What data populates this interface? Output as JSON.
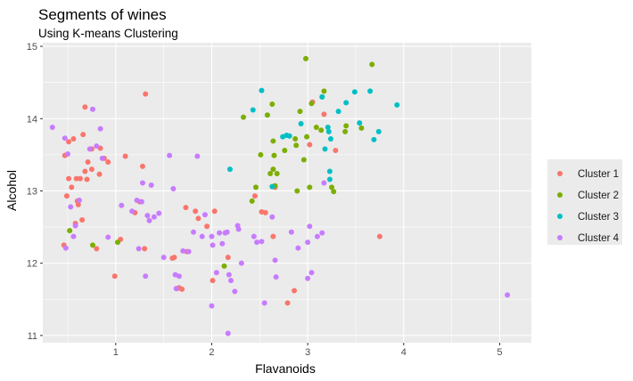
{
  "chart_data": {
    "type": "scatter",
    "title": "Segments of wines",
    "subtitle": "Using K-means Clustering",
    "xlabel": "Flavanoids",
    "ylabel": "Alcohol",
    "xlim": [
      0.24,
      5.33
    ],
    "ylim": [
      10.9,
      15.05
    ],
    "x_ticks": [
      1,
      2,
      3,
      4,
      5
    ],
    "y_ticks": [
      11,
      12,
      13,
      14,
      15
    ],
    "grid": true,
    "legend_position": "right",
    "series": [
      {
        "name": "Cluster 1",
        "color": "#F8766D",
        "points": [
          [
            0.46,
            12.25
          ],
          [
            0.47,
            13.49
          ],
          [
            0.51,
            13.17
          ],
          [
            0.49,
            12.93
          ],
          [
            0.51,
            13.68
          ],
          [
            0.54,
            13.05
          ],
          [
            0.56,
            13.72
          ],
          [
            0.58,
            12.55
          ],
          [
            0.59,
            13.17
          ],
          [
            0.6,
            12.86
          ],
          [
            0.61,
            12.81
          ],
          [
            0.63,
            13.17
          ],
          [
            0.65,
            12.6
          ],
          [
            0.66,
            13.78
          ],
          [
            0.68,
            13.27
          ],
          [
            0.68,
            14.16
          ],
          [
            0.7,
            13.16
          ],
          [
            0.71,
            13.4
          ],
          [
            0.75,
            13.58
          ],
          [
            0.75,
            13.3
          ],
          [
            0.8,
            12.2
          ],
          [
            0.83,
            13.23
          ],
          [
            0.84,
            13.59
          ],
          [
            0.88,
            13.45
          ],
          [
            0.92,
            13.4
          ],
          [
            0.99,
            11.82
          ],
          [
            1.05,
            12.33
          ],
          [
            1.1,
            13.48
          ],
          [
            1.2,
            12.7
          ],
          [
            1.25,
            12.85
          ],
          [
            1.28,
            13.34
          ],
          [
            1.31,
            14.34
          ],
          [
            1.3,
            12.2
          ],
          [
            1.59,
            12.07
          ],
          [
            1.61,
            12.08
          ],
          [
            1.64,
            11.65
          ],
          [
            1.66,
            11.66
          ],
          [
            1.69,
            11.64
          ],
          [
            1.73,
            12.77
          ],
          [
            1.74,
            12.16
          ],
          [
            1.83,
            12.72
          ],
          [
            1.86,
            12.62
          ],
          [
            1.95,
            12.51
          ],
          [
            2.01,
            11.76
          ],
          [
            2.03,
            12.72
          ],
          [
            2.17,
            12.08
          ],
          [
            2.45,
            12.93
          ],
          [
            2.52,
            12.71
          ],
          [
            2.56,
            12.7
          ],
          [
            2.64,
            12.37
          ],
          [
            2.66,
            13.05
          ],
          [
            2.79,
            11.45
          ],
          [
            2.86,
            11.62
          ],
          [
            3.02,
            13.64
          ],
          [
            3.05,
            14.23
          ],
          [
            3.17,
            14.06
          ],
          [
            3.29,
            13.56
          ],
          [
            3.75,
            12.37
          ]
        ]
      },
      {
        "name": "Cluster 2",
        "color": "#7CAE00",
        "points": [
          [
            0.52,
            12.45
          ],
          [
            0.76,
            12.25
          ],
          [
            1.02,
            12.29
          ],
          [
            2.13,
            11.96
          ],
          [
            2.33,
            14.02
          ],
          [
            2.42,
            12.86
          ],
          [
            2.46,
            13.05
          ],
          [
            2.51,
            13.5
          ],
          [
            2.58,
            14.05
          ],
          [
            2.61,
            13.24
          ],
          [
            2.63,
            14.2
          ],
          [
            2.64,
            13.69
          ],
          [
            2.64,
            13.3
          ],
          [
            2.65,
            13.49
          ],
          [
            2.66,
            13.07
          ],
          [
            2.68,
            13.24
          ],
          [
            2.76,
            13.56
          ],
          [
            2.87,
            13.72
          ],
          [
            2.88,
            13.63
          ],
          [
            2.89,
            13.0
          ],
          [
            2.92,
            14.1
          ],
          [
            2.96,
            13.43
          ],
          [
            2.98,
            14.83
          ],
          [
            2.99,
            13.75
          ],
          [
            3.02,
            13.05
          ],
          [
            3.04,
            14.21
          ],
          [
            3.09,
            13.88
          ],
          [
            3.14,
            13.84
          ],
          [
            3.15,
            14.3
          ],
          [
            3.17,
            14.38
          ],
          [
            3.25,
            13.05
          ],
          [
            3.27,
            12.99
          ],
          [
            3.39,
            13.82
          ],
          [
            3.4,
            13.9
          ],
          [
            3.56,
            13.87
          ],
          [
            3.67,
            14.75
          ]
        ]
      },
      {
        "name": "Cluster 3",
        "color": "#00BFC4",
        "points": [
          [
            2.19,
            13.3
          ],
          [
            2.43,
            14.12
          ],
          [
            2.52,
            14.39
          ],
          [
            2.63,
            13.06
          ],
          [
            2.74,
            13.75
          ],
          [
            2.78,
            13.77
          ],
          [
            2.81,
            13.76
          ],
          [
            2.93,
            13.93
          ],
          [
            3.15,
            14.3
          ],
          [
            3.18,
            13.58
          ],
          [
            3.21,
            13.88
          ],
          [
            3.22,
            13.82
          ],
          [
            3.23,
            13.27
          ],
          [
            3.23,
            13.16
          ],
          [
            3.24,
            13.72
          ],
          [
            3.32,
            14.1
          ],
          [
            3.4,
            14.22
          ],
          [
            3.49,
            14.37
          ],
          [
            3.54,
            13.94
          ],
          [
            3.65,
            14.38
          ],
          [
            3.69,
            13.71
          ],
          [
            3.74,
            13.82
          ],
          [
            3.93,
            14.19
          ]
        ]
      },
      {
        "name": "Cluster 4",
        "color": "#C77CFF",
        "points": [
          [
            0.34,
            13.88
          ],
          [
            0.47,
            13.73
          ],
          [
            0.48,
            12.21
          ],
          [
            0.5,
            13.51
          ],
          [
            0.53,
            12.78
          ],
          [
            0.56,
            12.37
          ],
          [
            0.58,
            12.52
          ],
          [
            0.62,
            12.87
          ],
          [
            0.73,
            13.58
          ],
          [
            0.76,
            14.13
          ],
          [
            0.8,
            13.62
          ],
          [
            0.84,
            13.86
          ],
          [
            0.86,
            13.45
          ],
          [
            0.92,
            12.36
          ],
          [
            1.06,
            12.8
          ],
          [
            1.17,
            12.72
          ],
          [
            1.22,
            12.87
          ],
          [
            1.24,
            12.2
          ],
          [
            1.27,
            12.85
          ],
          [
            1.28,
            13.11
          ],
          [
            1.31,
            11.82
          ],
          [
            1.33,
            12.66
          ],
          [
            1.35,
            12.59
          ],
          [
            1.37,
            13.08
          ],
          [
            1.4,
            12.64
          ],
          [
            1.45,
            12.69
          ],
          [
            1.5,
            12.08
          ],
          [
            1.56,
            13.49
          ],
          [
            1.6,
            13.03
          ],
          [
            1.62,
            11.84
          ],
          [
            1.63,
            11.65
          ],
          [
            1.66,
            11.82
          ],
          [
            1.7,
            12.17
          ],
          [
            1.76,
            12.16
          ],
          [
            1.81,
            12.43
          ],
          [
            1.85,
            13.48
          ],
          [
            1.9,
            12.37
          ],
          [
            1.93,
            12.67
          ],
          [
            2.0,
            12.37
          ],
          [
            2.0,
            11.41
          ],
          [
            2.01,
            12.25
          ],
          [
            2.05,
            11.87
          ],
          [
            2.08,
            12.42
          ],
          [
            2.11,
            12.27
          ],
          [
            2.14,
            12.42
          ],
          [
            2.16,
            12.43
          ],
          [
            2.17,
            11.03
          ],
          [
            2.18,
            11.84
          ],
          [
            2.2,
            11.76
          ],
          [
            2.24,
            11.61
          ],
          [
            2.27,
            12.52
          ],
          [
            2.28,
            12.47
          ],
          [
            2.31,
            12.0
          ],
          [
            2.44,
            12.37
          ],
          [
            2.47,
            12.29
          ],
          [
            2.52,
            12.3
          ],
          [
            2.55,
            11.45
          ],
          [
            2.63,
            12.64
          ],
          [
            2.66,
            12.04
          ],
          [
            2.67,
            11.81
          ],
          [
            2.83,
            12.43
          ],
          [
            2.9,
            12.21
          ],
          [
            3.0,
            11.79
          ],
          [
            3.0,
            12.29
          ],
          [
            3.02,
            12.51
          ],
          [
            3.04,
            11.87
          ],
          [
            3.1,
            12.37
          ],
          [
            3.15,
            12.42
          ],
          [
            3.17,
            13.11
          ],
          [
            5.08,
            11.56
          ]
        ]
      }
    ]
  }
}
